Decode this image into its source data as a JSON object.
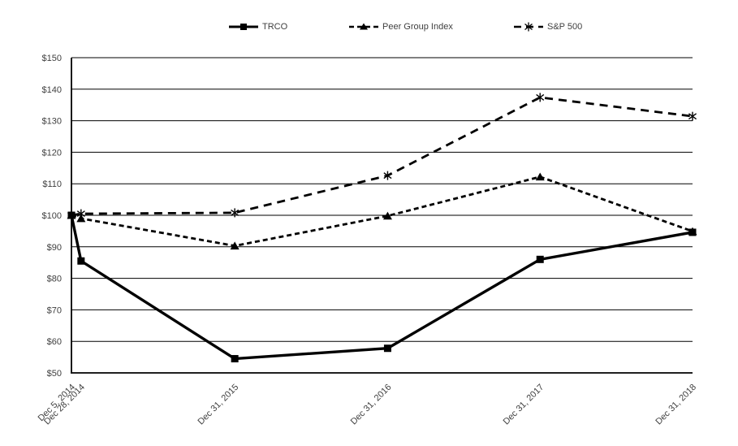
{
  "chart": {
    "legend": [
      {
        "label": "TRCO",
        "marker": "square",
        "line": "solid"
      },
      {
        "label": "Peer Group Index",
        "marker": "triangle",
        "line": "dashed-short"
      },
      {
        "label": "S&P 500",
        "marker": "star",
        "line": "dashed-long"
      }
    ],
    "y_axis": {
      "prefix": "$",
      "min": 50,
      "max": 150,
      "step": 10
    },
    "x_labels": [
      "Dec 5, 2014",
      "Dec 28, 2014",
      "Dec 31, 2015",
      "Dec 31, 2016",
      "Dec 31, 2017",
      "Dec 31, 2018"
    ]
  },
  "chart_data": {
    "type": "line",
    "title": "",
    "xlabel": "",
    "ylabel": "",
    "categories": [
      "Dec 5, 2014",
      "Dec 28, 2014",
      "Dec 31, 2015",
      "Dec 31, 2016",
      "Dec 31, 2017",
      "Dec 31, 2018"
    ],
    "x_days": [
      0,
      23,
      391,
      757,
      1122,
      1487
    ],
    "series": [
      {
        "name": "TRCO",
        "values": [
          100,
          85.5,
          54.5,
          57.8,
          86.0,
          94.6
        ],
        "line": "solid",
        "marker": "square"
      },
      {
        "name": "Peer Group Index",
        "values": [
          100,
          99.0,
          90.3,
          99.8,
          112.2,
          94.9
        ],
        "line": "dashed-short",
        "marker": "triangle"
      },
      {
        "name": "S&P 500",
        "values": [
          100,
          100.5,
          100.8,
          112.6,
          137.4,
          131.4
        ],
        "line": "dashed-long",
        "marker": "star"
      }
    ],
    "ylim": [
      50,
      150
    ],
    "y_tick_step": 10,
    "y_tick_prefix": "$",
    "grid": "horizontal",
    "legend_position": "top",
    "colors": {
      "line": "#000000",
      "text": "#404040",
      "grid": "#000000",
      "background": "#ffffff"
    }
  }
}
